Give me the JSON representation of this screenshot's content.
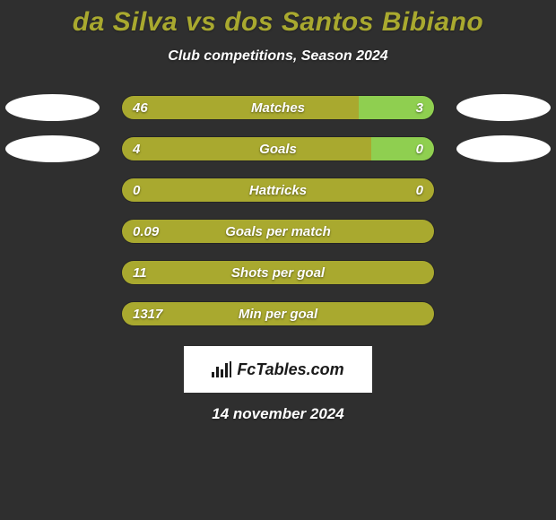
{
  "background_color": "#2f2f2f",
  "title": "da Silva vs dos Santos Bibiano",
  "title_color": "#a9a92f",
  "subtitle": "Club competitions, Season 2024",
  "left_color": "#a9a92f",
  "right_color": "#8fcf50",
  "neutral_color": "#a9a92f",
  "rows": [
    {
      "label": "Matches",
      "left_val": "46",
      "right_val": "3",
      "left_pct": 76,
      "right_pct": 24,
      "oval_left": true,
      "oval_right": true
    },
    {
      "label": "Goals",
      "left_val": "4",
      "right_val": "0",
      "left_pct": 80,
      "right_pct": 20,
      "oval_left": true,
      "oval_right": true
    },
    {
      "label": "Hattricks",
      "left_val": "0",
      "right_val": "0",
      "left_pct": 100,
      "right_pct": 0,
      "oval_left": false,
      "oval_right": false
    },
    {
      "label": "Goals per match",
      "left_val": "0.09",
      "right_val": "",
      "left_pct": 100,
      "right_pct": 0,
      "oval_left": false,
      "oval_right": false
    },
    {
      "label": "Shots per goal",
      "left_val": "11",
      "right_val": "",
      "left_pct": 100,
      "right_pct": 0,
      "oval_left": false,
      "oval_right": false
    },
    {
      "label": "Min per goal",
      "left_val": "1317",
      "right_val": "",
      "left_pct": 100,
      "right_pct": 0,
      "oval_left": false,
      "oval_right": false
    }
  ],
  "branding": "FcTables.com",
  "date": "14 november 2024"
}
